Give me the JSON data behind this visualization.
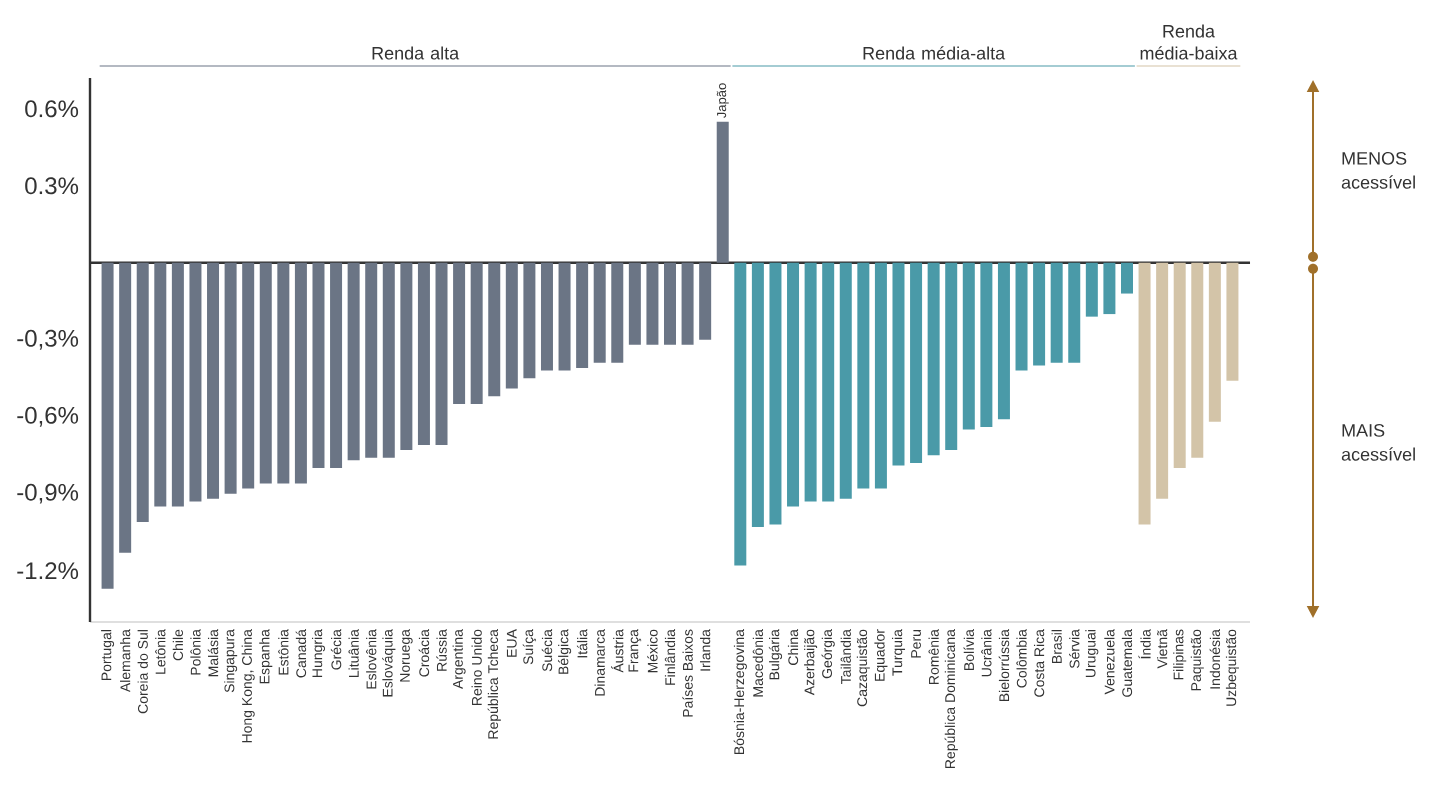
{
  "chart_data": {
    "type": "bar",
    "categories": [
      "Portugal",
      "Alemanha",
      "Coreia do Sul",
      "Letônia",
      "Chile",
      "Polônia",
      "Malásia",
      "Singapura",
      "Hong Kong, China",
      "Espanha",
      "Estônia",
      "Canadá",
      "Hungria",
      "Grécia",
      "Lituânia",
      "Eslovênia",
      "Eslováquia",
      "Noruega",
      "Croácia",
      "Rússia",
      "Argentina",
      "Reino Unido",
      "República Tcheca",
      "EUA",
      "Suíça",
      "Suécia",
      "Bélgica",
      "Itália",
      "Dinamarca",
      "Áustria",
      "França",
      "México",
      "Finlândia",
      "Países Baixos",
      "Irlanda",
      "Japão",
      "Bósnia-Herzegovina",
      "Macedônia",
      "Bulgária",
      "China",
      "Azerbaijão",
      "Geórgia",
      "Tailândia",
      "Cazaquistão",
      "Equador",
      "Turquia",
      "Peru",
      "Romênia",
      "República Dominicana",
      "Bolívia",
      "Ucrânia",
      "Bielorrússia",
      "Colômbia",
      "Costa Rica",
      "Brasil",
      "Sérvia",
      "Uruguai",
      "Venezuela",
      "Guatemala",
      "Índia",
      "Vietnã",
      "Filipinas",
      "Paquistão",
      "Indonésia",
      "Uzbequistão"
    ],
    "series": [
      {
        "color": "#6b7585",
        "values": [
          -1.27,
          -1.13,
          -1.01,
          -0.95,
          -0.95,
          -0.93,
          -0.92,
          -0.9,
          -0.88,
          -0.86,
          -0.86,
          -0.86,
          -0.8,
          -0.8,
          -0.77,
          -0.76,
          -0.76,
          -0.73,
          -0.71,
          -0.71,
          -0.55,
          -0.55,
          -0.52,
          -0.49,
          -0.45,
          -0.42,
          -0.42,
          -0.41,
          -0.39,
          -0.39,
          -0.32,
          -0.32,
          -0.32,
          -0.32,
          -0.3,
          0.55,
          null,
          null,
          null,
          null,
          null,
          null,
          null,
          null,
          null,
          null,
          null,
          null,
          null,
          null,
          null,
          null,
          null,
          null,
          null,
          null,
          null,
          null,
          null,
          null,
          null,
          null,
          null,
          null,
          null
        ]
      },
      {
        "color": "#4a9aa8",
        "values": [
          null,
          null,
          null,
          null,
          null,
          null,
          null,
          null,
          null,
          null,
          null,
          null,
          null,
          null,
          null,
          null,
          null,
          null,
          null,
          null,
          null,
          null,
          null,
          null,
          null,
          null,
          null,
          null,
          null,
          null,
          null,
          null,
          null,
          null,
          null,
          null,
          -1.18,
          -1.03,
          -1.02,
          -0.95,
          -0.93,
          -0.93,
          -0.92,
          -0.88,
          -0.88,
          -0.79,
          -0.78,
          -0.75,
          -0.73,
          -0.65,
          -0.64,
          -0.61,
          -0.42,
          -0.4,
          -0.39,
          -0.39,
          -0.21,
          -0.2,
          -0.12,
          null,
          null,
          null,
          null,
          null,
          null
        ]
      },
      {
        "color": "#d3c4a8",
        "values": [
          null,
          null,
          null,
          null,
          null,
          null,
          null,
          null,
          null,
          null,
          null,
          null,
          null,
          null,
          null,
          null,
          null,
          null,
          null,
          null,
          null,
          null,
          null,
          null,
          null,
          null,
          null,
          null,
          null,
          null,
          null,
          null,
          null,
          null,
          null,
          null,
          null,
          null,
          null,
          null,
          null,
          null,
          null,
          null,
          null,
          null,
          null,
          null,
          null,
          null,
          null,
          null,
          null,
          null,
          null,
          null,
          null,
          null,
          null,
          -1.02,
          -0.92,
          -0.8,
          -0.76,
          -0.62,
          -0.46
        ]
      }
    ],
    "ylim": [
      -1.4,
      0.72
    ],
    "yticks": [
      {
        "value": 0.6,
        "label": "0.6%"
      },
      {
        "value": 0.3,
        "label": "0.3%"
      },
      {
        "value": -0.3,
        "label": "-0,3%"
      },
      {
        "value": -0.6,
        "label": "-0,6%"
      },
      {
        "value": -0.9,
        "label": "-0,9%"
      },
      {
        "value": -1.2,
        "label": "-1.2%"
      }
    ],
    "annotations": [
      "Renda alta",
      "Renda média-alta",
      "Renda média-baixa",
      "MENOS acessível",
      "MAIS acessível"
    ]
  }
}
